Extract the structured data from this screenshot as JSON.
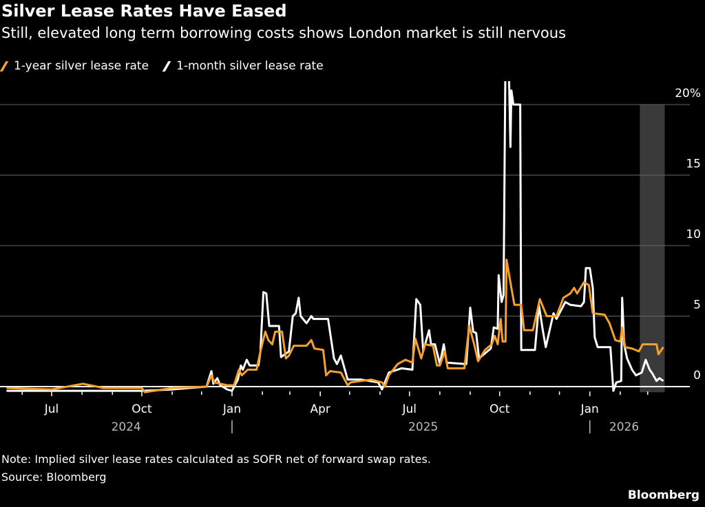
{
  "title": "Silver Lease Rates Have Eased",
  "subtitle": "Still, elevated long term borrowing costs shows London market is still nervous",
  "note": "Note: Implied silver lease rates calculated as SOFR net of forward swap rates.",
  "source": "Source: Bloomberg",
  "brand": "Bloomberg",
  "chart_data": {
    "type": "line",
    "title": "Silver Lease Rates Have Eased",
    "xlabel": "",
    "ylabel": "",
    "ylim": [
      0,
      20
    ],
    "y_unit": "%",
    "y_ticks": [
      {
        "value": 20,
        "label": "20%"
      },
      {
        "value": 15,
        "label": "15"
      },
      {
        "value": 10,
        "label": "10"
      },
      {
        "value": 5,
        "label": "5"
      },
      {
        "value": 0,
        "label": "0"
      }
    ],
    "x_ticks": [
      {
        "date": "2024-07-01",
        "label": "Jul"
      },
      {
        "date": "2024-10-01",
        "label": "Oct"
      },
      {
        "date": "2025-01-01",
        "label": "Jan"
      },
      {
        "date": "2025-04-01",
        "label": "Apr"
      },
      {
        "date": "2025-07-01",
        "label": "Jul"
      },
      {
        "date": "2025-10-01",
        "label": "Oct"
      },
      {
        "date": "2026-01-01",
        "label": "Jan"
      }
    ],
    "year_labels": [
      {
        "label": "2024",
        "date": "2024-09-15"
      },
      {
        "label": "2025",
        "date": "2025-07-15"
      },
      {
        "label": "2026",
        "date": "2026-02-05"
      }
    ],
    "year_separators": [
      "2025-01-01",
      "2026-01-01"
    ],
    "grid": true,
    "legend": "top-left",
    "highlight_band": {
      "start": "2026-02-21",
      "end": "2026-03-17",
      "color": "#3a3a3a"
    },
    "series": [
      {
        "name": "1-year silver lease rate",
        "color": "#f7a12c",
        "points": [
          [
            "2024-05-16",
            -0.1
          ],
          [
            "2024-07-01",
            -0.2
          ],
          [
            "2024-08-02",
            0.2
          ],
          [
            "2024-08-23",
            -0.1
          ],
          [
            "2024-10-01",
            -0.1
          ],
          [
            "2024-10-04",
            -0.4
          ],
          [
            "2024-11-01",
            -0.1
          ],
          [
            "2024-12-06",
            0.0
          ],
          [
            "2024-12-11",
            0.8
          ],
          [
            "2024-12-14",
            0.3
          ],
          [
            "2024-12-27",
            0.1
          ],
          [
            "2025-01-03",
            0.1
          ],
          [
            "2025-01-08",
            1.2
          ],
          [
            "2025-01-11",
            0.8
          ],
          [
            "2025-01-17",
            1.2
          ],
          [
            "2025-01-26",
            1.2
          ],
          [
            "2025-01-30",
            2.5
          ],
          [
            "2025-02-04",
            3.9
          ],
          [
            "2025-02-07",
            3.3
          ],
          [
            "2025-02-11",
            3.0
          ],
          [
            "2025-02-14",
            3.9
          ],
          [
            "2025-02-21",
            3.9
          ],
          [
            "2025-02-25",
            2.0
          ],
          [
            "2025-02-28",
            2.2
          ],
          [
            "2025-03-05",
            2.9
          ],
          [
            "2025-03-18",
            2.9
          ],
          [
            "2025-03-23",
            3.3
          ],
          [
            "2025-03-26",
            2.7
          ],
          [
            "2025-04-04",
            2.6
          ],
          [
            "2025-04-07",
            0.8
          ],
          [
            "2025-04-11",
            1.1
          ],
          [
            "2025-04-22",
            1.0
          ],
          [
            "2025-04-29",
            0.1
          ],
          [
            "2025-05-02",
            0.3
          ],
          [
            "2025-05-23",
            0.5
          ],
          [
            "2025-06-03",
            0.3
          ],
          [
            "2025-06-06",
            0.0
          ],
          [
            "2025-06-10",
            0.8
          ],
          [
            "2025-06-19",
            1.6
          ],
          [
            "2025-06-27",
            1.9
          ],
          [
            "2025-07-04",
            1.7
          ],
          [
            "2025-07-07",
            3.4
          ],
          [
            "2025-07-13",
            2.0
          ],
          [
            "2025-07-17",
            3.0
          ],
          [
            "2025-07-25",
            2.9
          ],
          [
            "2025-07-29",
            1.5
          ],
          [
            "2025-08-01",
            1.5
          ],
          [
            "2025-08-06",
            2.5
          ],
          [
            "2025-08-09",
            1.3
          ],
          [
            "2025-08-26",
            1.3
          ],
          [
            "2025-08-31",
            4.3
          ],
          [
            "2025-09-05",
            3.0
          ],
          [
            "2025-09-09",
            1.8
          ],
          [
            "2025-09-16",
            2.6
          ],
          [
            "2025-09-23",
            3.0
          ],
          [
            "2025-09-26",
            3.6
          ],
          [
            "2025-09-29",
            3.0
          ],
          [
            "2025-10-02",
            4.8
          ],
          [
            "2025-10-04",
            3.2
          ],
          [
            "2025-10-07",
            3.2
          ],
          [
            "2025-10-08",
            9.0
          ],
          [
            "2025-10-13",
            7.0
          ],
          [
            "2025-10-16",
            5.8
          ],
          [
            "2025-10-23",
            5.8
          ],
          [
            "2025-10-26",
            4.0
          ],
          [
            "2025-11-04",
            4.0
          ],
          [
            "2025-11-11",
            6.2
          ],
          [
            "2025-11-18",
            5.0
          ],
          [
            "2025-11-28",
            5.0
          ],
          [
            "2025-12-05",
            6.3
          ],
          [
            "2025-12-12",
            6.6
          ],
          [
            "2025-12-16",
            7.0
          ],
          [
            "2025-12-19",
            6.6
          ],
          [
            "2025-12-26",
            7.4
          ],
          [
            "2025-12-31",
            7.2
          ],
          [
            "2026-01-04",
            5.2
          ],
          [
            "2026-01-16",
            5.1
          ],
          [
            "2026-01-21",
            4.5
          ],
          [
            "2026-01-27",
            3.3
          ],
          [
            "2026-02-01",
            3.2
          ],
          [
            "2026-02-03",
            4.2
          ],
          [
            "2026-02-06",
            2.8
          ],
          [
            "2026-02-13",
            2.7
          ],
          [
            "2026-02-20",
            2.5
          ],
          [
            "2026-02-24",
            3.0
          ],
          [
            "2026-03-10",
            3.0
          ],
          [
            "2026-03-12",
            2.3
          ],
          [
            "2026-03-17",
            2.8
          ]
        ]
      },
      {
        "name": "1-month silver lease rate",
        "color": "#ffffff",
        "points": [
          [
            "2024-05-16",
            -0.3
          ],
          [
            "2024-07-01",
            -0.3
          ],
          [
            "2024-10-01",
            -0.3
          ],
          [
            "2024-11-01",
            -0.2
          ],
          [
            "2024-12-06",
            0.0
          ],
          [
            "2024-12-11",
            1.1
          ],
          [
            "2024-12-13",
            0.2
          ],
          [
            "2024-12-17",
            0.6
          ],
          [
            "2024-12-20",
            0.1
          ],
          [
            "2024-12-27",
            -0.2
          ],
          [
            "2025-01-01",
            -0.3
          ],
          [
            "2025-01-07",
            0.5
          ],
          [
            "2025-01-10",
            1.5
          ],
          [
            "2025-01-12",
            1.2
          ],
          [
            "2025-01-16",
            1.9
          ],
          [
            "2025-01-19",
            1.5
          ],
          [
            "2025-01-28",
            1.5
          ],
          [
            "2025-01-30",
            2.5
          ],
          [
            "2025-02-02",
            6.7
          ],
          [
            "2025-02-05",
            6.6
          ],
          [
            "2025-02-08",
            4.3
          ],
          [
            "2025-02-18",
            4.3
          ],
          [
            "2025-02-20",
            2.1
          ],
          [
            "2025-02-28",
            2.5
          ],
          [
            "2025-03-04",
            5.0
          ],
          [
            "2025-03-07",
            5.2
          ],
          [
            "2025-03-10",
            6.3
          ],
          [
            "2025-03-12",
            5.0
          ],
          [
            "2025-03-18",
            4.5
          ],
          [
            "2025-03-23",
            5.0
          ],
          [
            "2025-03-25",
            4.8
          ],
          [
            "2025-04-09",
            4.8
          ],
          [
            "2025-04-15",
            2.0
          ],
          [
            "2025-04-18",
            1.6
          ],
          [
            "2025-04-22",
            2.2
          ],
          [
            "2025-04-29",
            0.5
          ],
          [
            "2025-05-13",
            0.5
          ],
          [
            "2025-05-30",
            0.3
          ],
          [
            "2025-06-03",
            -0.2
          ],
          [
            "2025-06-10",
            1.0
          ],
          [
            "2025-06-23",
            1.3
          ],
          [
            "2025-07-04",
            1.2
          ],
          [
            "2025-07-08",
            6.2
          ],
          [
            "2025-07-12",
            5.8
          ],
          [
            "2025-07-15",
            2.5
          ],
          [
            "2025-07-21",
            4.0
          ],
          [
            "2025-07-23",
            3.0
          ],
          [
            "2025-07-27",
            3.0
          ],
          [
            "2025-08-01",
            1.6
          ],
          [
            "2025-08-05",
            3.0
          ],
          [
            "2025-08-08",
            1.7
          ],
          [
            "2025-08-28",
            1.6
          ],
          [
            "2025-09-01",
            5.6
          ],
          [
            "2025-09-04",
            3.9
          ],
          [
            "2025-09-07",
            3.8
          ],
          [
            "2025-09-10",
            2.0
          ],
          [
            "2025-09-22",
            2.7
          ],
          [
            "2025-09-25",
            4.2
          ],
          [
            "2025-09-29",
            4.1
          ],
          [
            "2025-09-30",
            7.9
          ],
          [
            "2025-10-03",
            6.0
          ],
          [
            "2025-10-05",
            6.5
          ],
          [
            "2025-10-07",
            24
          ],
          [
            "2025-10-10",
            24
          ],
          [
            "2025-10-12",
            17
          ],
          [
            "2025-10-13",
            21
          ],
          [
            "2025-10-15",
            20
          ],
          [
            "2025-10-22",
            20
          ],
          [
            "2025-10-23",
            2.6
          ],
          [
            "2025-11-06",
            2.6
          ],
          [
            "2025-11-10",
            5.8
          ],
          [
            "2025-11-14",
            4.0
          ],
          [
            "2025-11-17",
            2.8
          ],
          [
            "2025-11-21",
            4.0
          ],
          [
            "2025-11-25",
            5.2
          ],
          [
            "2025-11-28",
            4.8
          ],
          [
            "2025-12-07",
            6.0
          ],
          [
            "2025-12-12",
            5.8
          ],
          [
            "2025-12-23",
            5.7
          ],
          [
            "2025-12-26",
            6.0
          ],
          [
            "2025-12-28",
            8.4
          ],
          [
            "2026-01-01",
            8.4
          ],
          [
            "2026-01-04",
            7.0
          ],
          [
            "2026-01-06",
            3.5
          ],
          [
            "2026-01-09",
            2.8
          ],
          [
            "2026-01-22",
            2.8
          ],
          [
            "2026-01-25",
            -0.3
          ],
          [
            "2026-01-28",
            0.3
          ],
          [
            "2026-02-02",
            0.4
          ],
          [
            "2026-02-03",
            6.3
          ],
          [
            "2026-02-05",
            3.0
          ],
          [
            "2026-02-08",
            2.0
          ],
          [
            "2026-02-13",
            1.2
          ],
          [
            "2026-02-17",
            0.8
          ],
          [
            "2026-02-23",
            1.0
          ],
          [
            "2026-02-27",
            1.9
          ],
          [
            "2026-03-03",
            1.2
          ],
          [
            "2026-03-06",
            0.9
          ],
          [
            "2026-03-10",
            0.4
          ],
          [
            "2026-03-13",
            0.6
          ],
          [
            "2026-03-17",
            0.4
          ]
        ]
      }
    ]
  }
}
